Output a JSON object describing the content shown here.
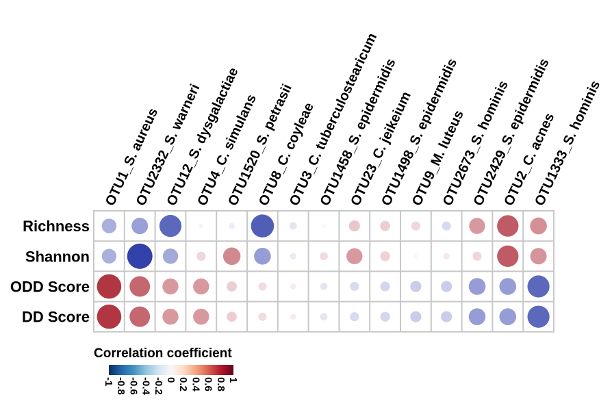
{
  "chart_data": {
    "type": "heatmap",
    "columns": [
      "OTU1_S. aureus",
      "OTU2332_S. warneri",
      "OTU12_S. dysgalactiae",
      "OTU4_C. simulans",
      "OTU1520_S. petrasii",
      "OTU8_C. coyleae",
      "OTU3_C. tuberculostearicum",
      "OTU1458_S. epidermidis",
      "OTU23_C. jeikeium",
      "OTU1498_S. epidermidis",
      "OTU9_M. luteus",
      "OTU2673_S. hominis",
      "OTU2429_S. epidermidis",
      "OTU2_C. acnes",
      "OTU1333_S. hominis"
    ],
    "rows": [
      "Richness",
      "Shannon",
      "ODD Score",
      "DD Score"
    ],
    "values": [
      [
        -0.32,
        -0.4,
        -0.72,
        0.03,
        -0.05,
        -0.78,
        -0.08,
        0.02,
        0.18,
        0.15,
        0.12,
        -0.12,
        0.38,
        0.68,
        0.42
      ],
      [
        -0.32,
        -0.95,
        -0.35,
        0.12,
        0.45,
        -0.42,
        -0.06,
        0.1,
        0.38,
        0.14,
        0.02,
        0.06,
        0.12,
        0.68,
        0.4
      ],
      [
        0.88,
        0.62,
        0.38,
        0.38,
        0.15,
        0.1,
        0.05,
        -0.08,
        -0.12,
        -0.14,
        -0.18,
        -0.18,
        -0.42,
        -0.42,
        -0.72
      ],
      [
        0.88,
        0.62,
        0.38,
        0.38,
        0.15,
        0.1,
        0.05,
        -0.08,
        -0.12,
        -0.14,
        -0.18,
        -0.18,
        -0.42,
        -0.42,
        -0.72
      ]
    ],
    "legend": {
      "title": "Correlation coefficient",
      "ticks": [
        "-1",
        "-0.8",
        "-0.6",
        "-0.4",
        "-0.2",
        "0",
        "0.2",
        "0.4",
        "0.6",
        "0.8",
        "1"
      ],
      "range": [
        -1,
        1
      ]
    },
    "colors": {
      "negative": "#2a3aa8",
      "neutral": "#ffffff",
      "positive": "#a8202c",
      "scale": [
        "#053061",
        "#2166ac",
        "#4393c3",
        "#92c5de",
        "#d1e5f0",
        "#f7f7f7",
        "#fddbc7",
        "#f4a582",
        "#d6604d",
        "#b2182b",
        "#67001f"
      ],
      "grid": "#c8c8c8"
    }
  }
}
